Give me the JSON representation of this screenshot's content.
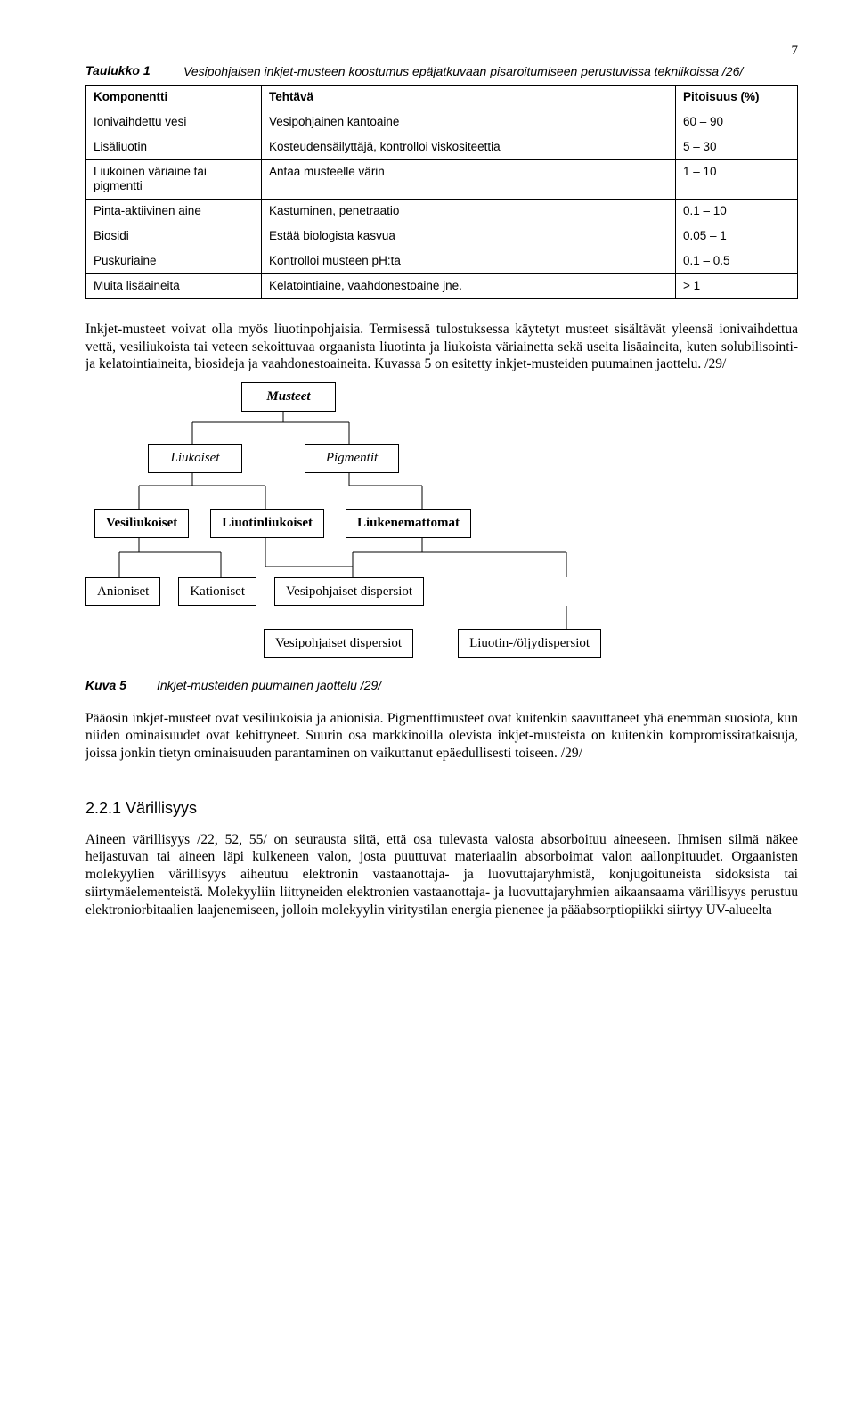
{
  "page_number": "7",
  "table": {
    "caption_label": "Taulukko 1",
    "caption_text": "Vesipohjaisen inkjet-musteen koostumus epäjatkuvaan pisaroitumiseen perustuvissa tekniikoissa /26/",
    "headers": [
      "Komponentti",
      "Tehtävä",
      "Pitoisuus (%)"
    ],
    "rows": [
      [
        "Ionivaihdettu vesi",
        "Vesipohjainen kantoaine",
        "60 – 90"
      ],
      [
        "Lisäliuotin",
        "Kosteudensäilyttäjä, kontrolloi viskositeettia",
        "5 – 30"
      ],
      [
        "Liukoinen väriaine tai pigmentti",
        "Antaa musteelle värin",
        "1 – 10"
      ],
      [
        "Pinta-aktiivinen aine",
        "Kastuminen, penetraatio",
        "0.1 – 10"
      ],
      [
        "Biosidi",
        "Estää biologista kasvua",
        "0.05 – 1"
      ],
      [
        "Puskuriaine",
        "Kontrolloi musteen pH:ta",
        "0.1 – 0.5"
      ],
      [
        "Muita lisäaineita",
        "Kelatointiaine, vaahdonestoaine jne.",
        "> 1"
      ]
    ]
  },
  "para1": "Inkjet-musteet voivat olla myös liuotinpohjaisia. Termisessä tulostuksessa käytetyt musteet sisältävät yleensä ionivaihdettua vettä, vesiliukoista tai veteen sekoittuvaa orgaanista liuotinta ja liukoista väriainetta sekä useita lisäaineita, kuten solubilisointi- ja kelatointiaineita, biosideja ja vaahdonestoaineita. Kuvassa 5 on esitetty inkjet-musteiden puumainen jaottelu. /29/",
  "tree": {
    "root": "Musteet",
    "l2": [
      "Liukoiset",
      "Pigmentit"
    ],
    "l3": [
      "Vesiliukoiset",
      "Liuotinliukoiset",
      "Liukenemattomat"
    ],
    "l4a": [
      "Anioniset",
      "Kationiset",
      "Vesipohjaiset dispersiot"
    ],
    "l4b": [
      "Vesipohjaiset dispersiot",
      "Liuotin-/öljydispersiot"
    ],
    "line_color": "#000000",
    "box_border": "#000000",
    "background": "#ffffff"
  },
  "figure": {
    "label": "Kuva 5",
    "text": "Inkjet-musteiden puumainen jaottelu /29/"
  },
  "para2": "Pääosin inkjet-musteet ovat vesiliukoisia ja anionisia. Pigmenttimusteet ovat kuitenkin saavuttaneet yhä enemmän suosiota, kun niiden ominaisuudet ovat kehittyneet. Suurin osa markkinoilla olevista inkjet-musteista on kuitenkin kompromissiratkaisuja, joissa jonkin tietyn ominaisuuden parantaminen on vaikuttanut epäedullisesti toiseen. /29/",
  "section_heading": "2.2.1  Värillisyys",
  "para3": "Aineen värillisyys /22, 52, 55/ on seurausta siitä, että osa tulevasta valosta absorboituu aineeseen. Ihmisen silmä näkee heijastuvan tai aineen läpi kulkeneen valon, josta puuttuvat materiaalin absorboimat valon aallonpituudet. Orgaanisten molekyylien värillisyys aiheutuu elektronin vastaanottaja- ja luovuttajaryhmistä, konjugoituneista sidoksista tai siirtymäelementeistä. Molekyyliin liittyneiden elektronien vastaanottaja- ja luovuttajaryhmien aikaansaama värillisyys perustuu elektroniorbitaalien laajenemiseen, jolloin molekyylin viritystilan energia pienenee ja pääabsorptiopiikki siirtyy UV-alueelta"
}
